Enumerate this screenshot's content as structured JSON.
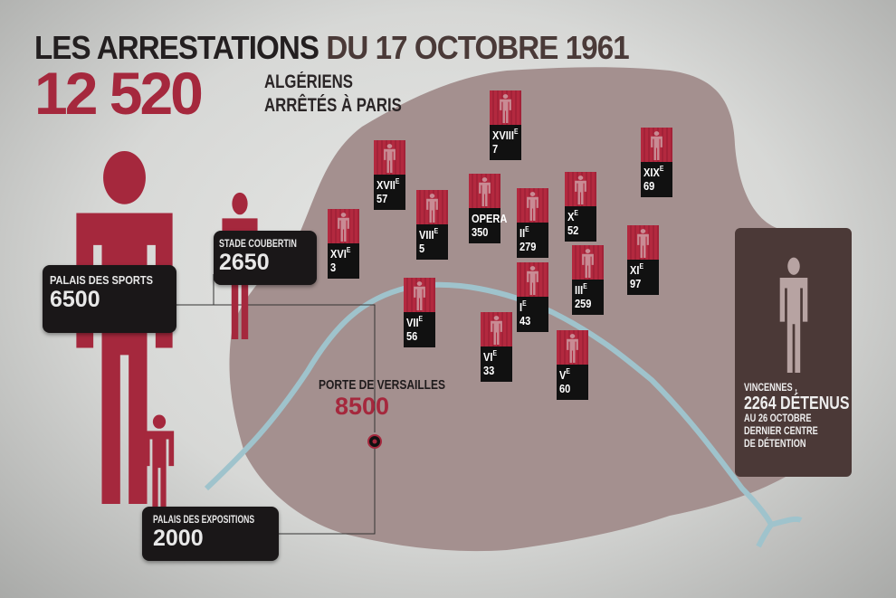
{
  "title": {
    "part1": "LES ARRESTATIONS",
    "part2": "DU 17 OCTOBRE 1961"
  },
  "total": {
    "value": "12 520",
    "line1": "ALGÉRIENS",
    "line2": "ARRÊTÉS À PARIS"
  },
  "colors": {
    "accent": "#a5283d",
    "map": "#a4908f",
    "seine": "#9fc3cc",
    "dark": "#1a1718",
    "vincennes": "#4b3937"
  },
  "markers": [
    {
      "num": "XVIII",
      "sup": "E",
      "value": "7"
    },
    {
      "num": "XVII",
      "sup": "E",
      "value": "57"
    },
    {
      "num": "XIX",
      "sup": "E",
      "value": "69"
    },
    {
      "num": "XVI",
      "sup": "E",
      "value": "3"
    },
    {
      "num": "VIII",
      "sup": "E",
      "value": "5"
    },
    {
      "num": "OPERA",
      "sup": "",
      "value": "350"
    },
    {
      "num": "II",
      "sup": "E",
      "value": "279"
    },
    {
      "num": "X",
      "sup": "E",
      "value": "52"
    },
    {
      "num": "XI",
      "sup": "E",
      "value": "97"
    },
    {
      "num": "III",
      "sup": "E",
      "value": "259"
    },
    {
      "num": "I",
      "sup": "E",
      "value": "43"
    },
    {
      "num": "VII",
      "sup": "E",
      "value": "56"
    },
    {
      "num": "VI",
      "sup": "E",
      "value": "33"
    },
    {
      "num": "V",
      "sup": "E",
      "value": "60"
    }
  ],
  "centres": {
    "palais_sports": {
      "label": "PALAIS DES SPORTS",
      "value": "6500"
    },
    "stade_coubertin": {
      "label": "STADE COUBERTIN",
      "value": "2650"
    },
    "palais_expositions": {
      "label": "PALAIS DES EXPOSITIONS",
      "value": "2000"
    },
    "porte_versailles": {
      "label": "PORTE DE VERSAILLES",
      "value": "8500"
    },
    "vincennes": {
      "line1": "VINCENNES ,",
      "line2": "2264 DÉTENUS",
      "line3": "AU 26 OCTOBRE",
      "line4": "DERNIER CENTRE",
      "line5": "DE DÉTENTION"
    }
  }
}
